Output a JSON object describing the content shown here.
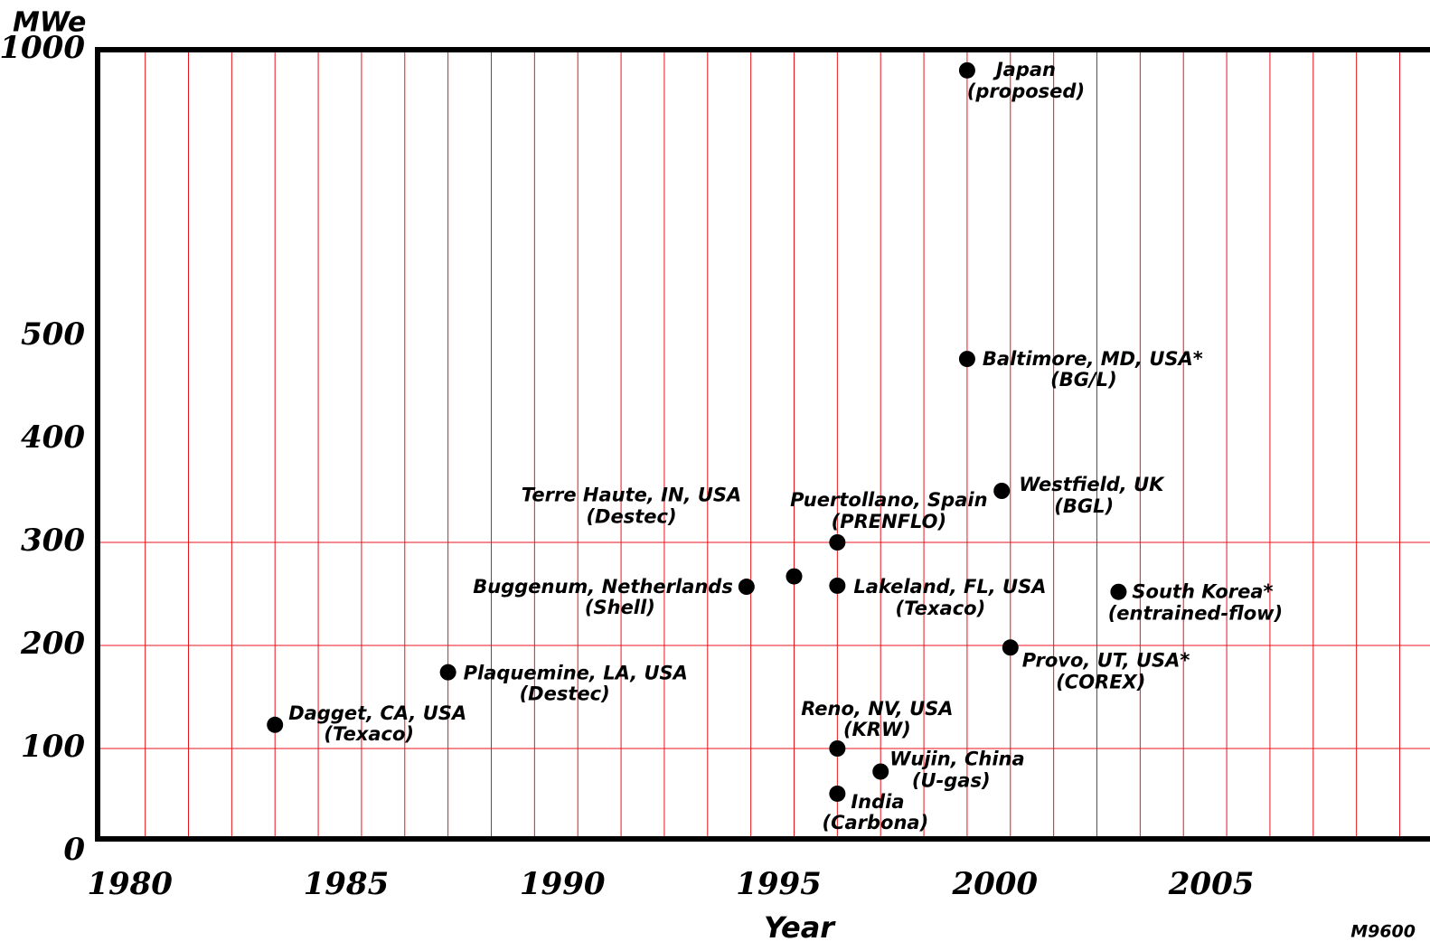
{
  "chart_data": {
    "type": "scatter",
    "y_label": "MWe",
    "x_label": "Year",
    "note": "M9600",
    "xlim": [
      1978.9,
      2009.7
    ],
    "xticks": [
      1980,
      1985,
      1990,
      1995,
      2000,
      2005
    ],
    "xgrid": [
      1980,
      1981,
      1982,
      1983,
      1984,
      1985,
      1986,
      1987,
      1988,
      1989,
      1990,
      1991,
      1992,
      1993,
      1994,
      1995,
      1996,
      1997,
      1998,
      1999,
      2000,
      2001,
      2002,
      2003,
      2004,
      2005,
      2006,
      2007,
      2008,
      2009
    ],
    "ylim": [
      0,
      1000
    ],
    "yticks": [
      0,
      100,
      200,
      300,
      400,
      500,
      1000
    ],
    "ygrid": [
      100,
      200,
      300
    ],
    "grid_color": "#e8141c",
    "series": [
      {
        "color": "#000000",
        "x": [
          1983.0,
          1987.0,
          1993.9,
          1995.0,
          1996.0,
          1996.0,
          1996.0,
          1996.0,
          1997.0,
          1999.0,
          1999.0,
          1999.8,
          2000.0,
          2002.5
        ],
        "values": [
          123,
          174,
          257,
          267,
          300,
          258,
          100,
          51,
          75,
          964,
          478,
          350,
          198,
          252
        ],
        "labels": [
          "Dagget, CA, USA",
          "Plaquemine, LA, USA",
          "Buggenum, Netherlands",
          "Terre Haute, IN, USA",
          "Puertollano, Spain",
          "Lakeland, FL, USA",
          "Reno, NV, USA",
          "India",
          "Wujin, China",
          "Japan",
          "Baltimore, MD, USA*",
          "Westfield, UK",
          "Provo, UT, USA*",
          "South Korea*"
        ],
        "sublabels": [
          "(Texaco)",
          "(Destec)",
          "(Shell)",
          "(Destec)",
          "(PRENFLO)",
          "(Texaco)",
          "(KRW)",
          "(Carbona)",
          "(U-gas)",
          "(proposed)",
          "(BG/L)",
          "(BGL)",
          "(COREX)",
          "(entrained-flow)"
        ]
      }
    ]
  }
}
